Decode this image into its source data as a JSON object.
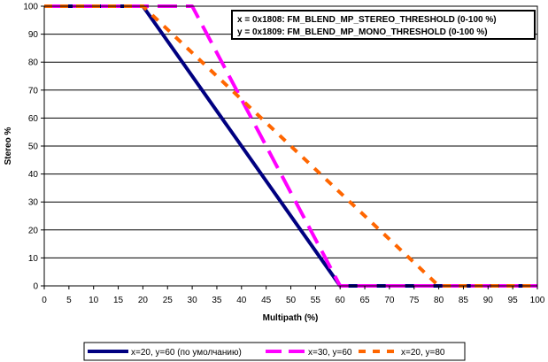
{
  "chart_data": {
    "type": "line",
    "title": "",
    "xlabel": "Multipath (%)",
    "ylabel": "Stereo %",
    "xlim": [
      0,
      100
    ],
    "ylim": [
      0,
      100
    ],
    "x_ticks": [
      0,
      5,
      10,
      15,
      20,
      25,
      30,
      35,
      40,
      45,
      50,
      55,
      60,
      65,
      70,
      75,
      80,
      85,
      90,
      95,
      100
    ],
    "y_ticks": [
      0,
      10,
      20,
      30,
      40,
      50,
      60,
      70,
      80,
      90,
      100
    ],
    "grid": "horizontal",
    "legend_position": "bottom",
    "annotation": [
      "x = 0x1808: FM_BLEND_MP_STEREO_THRESHOLD (0-100 %)",
      "y = 0x1809: FM_BLEND_MP_MONO_THRESHOLD (0-100 %)"
    ],
    "series": [
      {
        "name": "x=20, y=60 (по умолчанию)",
        "color": "#000080",
        "style": "solid",
        "points": [
          [
            0,
            100
          ],
          [
            20,
            100
          ],
          [
            60,
            0
          ],
          [
            100,
            0
          ]
        ]
      },
      {
        "name": "x=30, y=60",
        "color": "#ff00ff",
        "style": "dashed",
        "points": [
          [
            0,
            100
          ],
          [
            30,
            100
          ],
          [
            60,
            0
          ],
          [
            100,
            0
          ]
        ]
      },
      {
        "name": "x=20, y=80",
        "color": "#ff6600",
        "style": "dotted",
        "points": [
          [
            0,
            100
          ],
          [
            20,
            100
          ],
          [
            80,
            0
          ],
          [
            100,
            0
          ]
        ]
      }
    ]
  }
}
